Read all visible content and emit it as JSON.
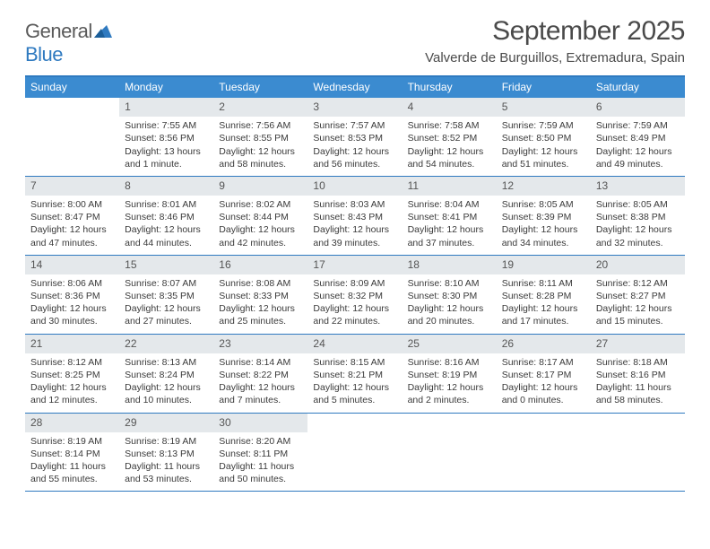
{
  "logo": {
    "text_general": "General",
    "text_blue": "Blue"
  },
  "title": "September 2025",
  "location": "Valverde de Burguillos, Extremadura, Spain",
  "colors": {
    "header_bar": "#3b8bd0",
    "rule": "#2f7ac0",
    "daynum_bg": "#e4e8eb",
    "text": "#3a3a3a",
    "title_text": "#4a4a4a"
  },
  "weekdays": [
    "Sunday",
    "Monday",
    "Tuesday",
    "Wednesday",
    "Thursday",
    "Friday",
    "Saturday"
  ],
  "weeks": [
    [
      null,
      {
        "n": "1",
        "sunrise": "7:55 AM",
        "sunset": "8:56 PM",
        "daylight": "13 hours and 1 minute."
      },
      {
        "n": "2",
        "sunrise": "7:56 AM",
        "sunset": "8:55 PM",
        "daylight": "12 hours and 58 minutes."
      },
      {
        "n": "3",
        "sunrise": "7:57 AM",
        "sunset": "8:53 PM",
        "daylight": "12 hours and 56 minutes."
      },
      {
        "n": "4",
        "sunrise": "7:58 AM",
        "sunset": "8:52 PM",
        "daylight": "12 hours and 54 minutes."
      },
      {
        "n": "5",
        "sunrise": "7:59 AM",
        "sunset": "8:50 PM",
        "daylight": "12 hours and 51 minutes."
      },
      {
        "n": "6",
        "sunrise": "7:59 AM",
        "sunset": "8:49 PM",
        "daylight": "12 hours and 49 minutes."
      }
    ],
    [
      {
        "n": "7",
        "sunrise": "8:00 AM",
        "sunset": "8:47 PM",
        "daylight": "12 hours and 47 minutes."
      },
      {
        "n": "8",
        "sunrise": "8:01 AM",
        "sunset": "8:46 PM",
        "daylight": "12 hours and 44 minutes."
      },
      {
        "n": "9",
        "sunrise": "8:02 AM",
        "sunset": "8:44 PM",
        "daylight": "12 hours and 42 minutes."
      },
      {
        "n": "10",
        "sunrise": "8:03 AM",
        "sunset": "8:43 PM",
        "daylight": "12 hours and 39 minutes."
      },
      {
        "n": "11",
        "sunrise": "8:04 AM",
        "sunset": "8:41 PM",
        "daylight": "12 hours and 37 minutes."
      },
      {
        "n": "12",
        "sunrise": "8:05 AM",
        "sunset": "8:39 PM",
        "daylight": "12 hours and 34 minutes."
      },
      {
        "n": "13",
        "sunrise": "8:05 AM",
        "sunset": "8:38 PM",
        "daylight": "12 hours and 32 minutes."
      }
    ],
    [
      {
        "n": "14",
        "sunrise": "8:06 AM",
        "sunset": "8:36 PM",
        "daylight": "12 hours and 30 minutes."
      },
      {
        "n": "15",
        "sunrise": "8:07 AM",
        "sunset": "8:35 PM",
        "daylight": "12 hours and 27 minutes."
      },
      {
        "n": "16",
        "sunrise": "8:08 AM",
        "sunset": "8:33 PM",
        "daylight": "12 hours and 25 minutes."
      },
      {
        "n": "17",
        "sunrise": "8:09 AM",
        "sunset": "8:32 PM",
        "daylight": "12 hours and 22 minutes."
      },
      {
        "n": "18",
        "sunrise": "8:10 AM",
        "sunset": "8:30 PM",
        "daylight": "12 hours and 20 minutes."
      },
      {
        "n": "19",
        "sunrise": "8:11 AM",
        "sunset": "8:28 PM",
        "daylight": "12 hours and 17 minutes."
      },
      {
        "n": "20",
        "sunrise": "8:12 AM",
        "sunset": "8:27 PM",
        "daylight": "12 hours and 15 minutes."
      }
    ],
    [
      {
        "n": "21",
        "sunrise": "8:12 AM",
        "sunset": "8:25 PM",
        "daylight": "12 hours and 12 minutes."
      },
      {
        "n": "22",
        "sunrise": "8:13 AM",
        "sunset": "8:24 PM",
        "daylight": "12 hours and 10 minutes."
      },
      {
        "n": "23",
        "sunrise": "8:14 AM",
        "sunset": "8:22 PM",
        "daylight": "12 hours and 7 minutes."
      },
      {
        "n": "24",
        "sunrise": "8:15 AM",
        "sunset": "8:21 PM",
        "daylight": "12 hours and 5 minutes."
      },
      {
        "n": "25",
        "sunrise": "8:16 AM",
        "sunset": "8:19 PM",
        "daylight": "12 hours and 2 minutes."
      },
      {
        "n": "26",
        "sunrise": "8:17 AM",
        "sunset": "8:17 PM",
        "daylight": "12 hours and 0 minutes."
      },
      {
        "n": "27",
        "sunrise": "8:18 AM",
        "sunset": "8:16 PM",
        "daylight": "11 hours and 58 minutes."
      }
    ],
    [
      {
        "n": "28",
        "sunrise": "8:19 AM",
        "sunset": "8:14 PM",
        "daylight": "11 hours and 55 minutes."
      },
      {
        "n": "29",
        "sunrise": "8:19 AM",
        "sunset": "8:13 PM",
        "daylight": "11 hours and 53 minutes."
      },
      {
        "n": "30",
        "sunrise": "8:20 AM",
        "sunset": "8:11 PM",
        "daylight": "11 hours and 50 minutes."
      },
      null,
      null,
      null,
      null
    ]
  ],
  "labels": {
    "sunrise": "Sunrise: ",
    "sunset": "Sunset: ",
    "daylight": "Daylight: "
  }
}
